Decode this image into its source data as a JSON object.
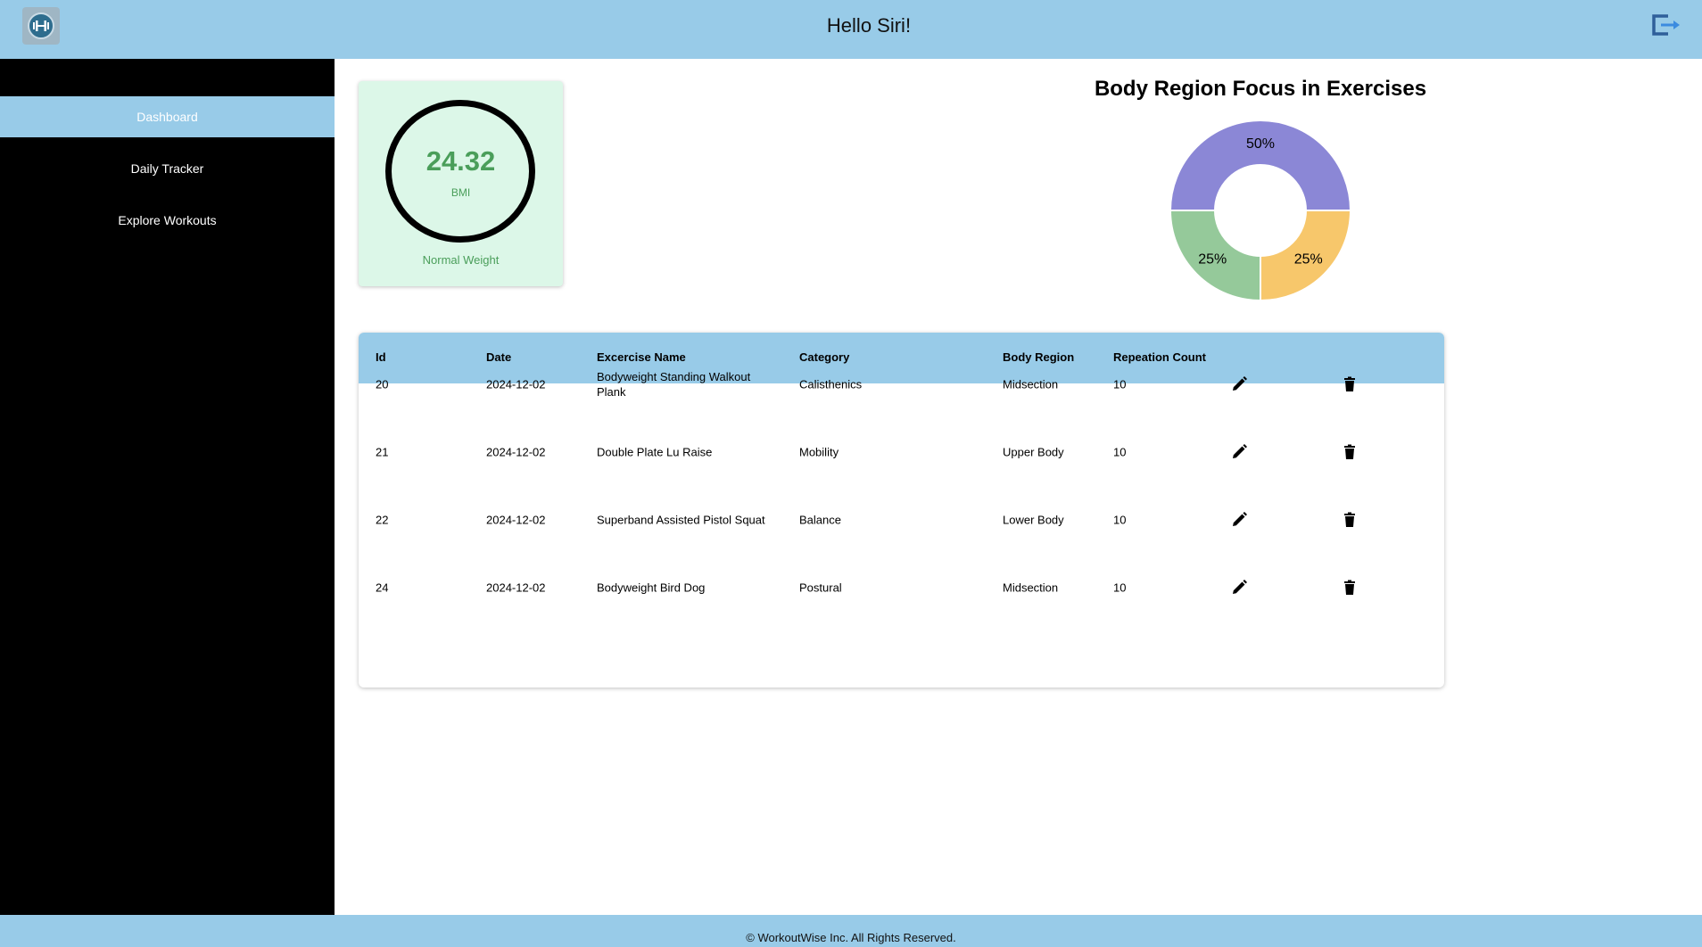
{
  "header": {
    "title": "Hello Siri!",
    "logo_icon": "dumbbell-logo-icon",
    "logout_icon": "logout-icon",
    "accent_color": "#98cbe8"
  },
  "sidebar": {
    "items": [
      {
        "label": "Dashboard",
        "active": true
      },
      {
        "label": "Daily Tracker",
        "active": false
      },
      {
        "label": "Explore Workouts",
        "active": false
      }
    ]
  },
  "bmi": {
    "value": "24.32",
    "label": "BMI",
    "status": "Normal Weight"
  },
  "chart_data": {
    "type": "pie",
    "title": "Body Region Focus in Exercises",
    "donut": true,
    "slices": [
      {
        "value": 50,
        "label": "50%",
        "color": "#8b87d6"
      },
      {
        "value": 25,
        "label": "25%",
        "color": "#f7c76b"
      },
      {
        "value": 25,
        "label": "25%",
        "color": "#95c99a"
      }
    ]
  },
  "table": {
    "columns": [
      "Id",
      "Date",
      "Excercise Name",
      "Category",
      "Body Region",
      "Repeation Count"
    ],
    "rows": [
      {
        "id": "20",
        "date": "2024-12-02",
        "name": "Bodyweight Standing Walkout Plank",
        "category": "Calisthenics",
        "region": "Midsection",
        "count": "10"
      },
      {
        "id": "21",
        "date": "2024-12-02",
        "name": "Double Plate Lu Raise",
        "category": "Mobility",
        "region": "Upper Body",
        "count": "10"
      },
      {
        "id": "22",
        "date": "2024-12-02",
        "name": "Superband Assisted Pistol Squat",
        "category": "Balance",
        "region": "Lower Body",
        "count": "10"
      },
      {
        "id": "24",
        "date": "2024-12-02",
        "name": "Bodyweight Bird Dog",
        "category": "Postural",
        "region": "Midsection",
        "count": "10"
      }
    ],
    "row_icons": [
      "edit-icon",
      "delete-icon"
    ]
  },
  "footer": {
    "text": "© WorkoutWise Inc. All Rights Reserved."
  }
}
